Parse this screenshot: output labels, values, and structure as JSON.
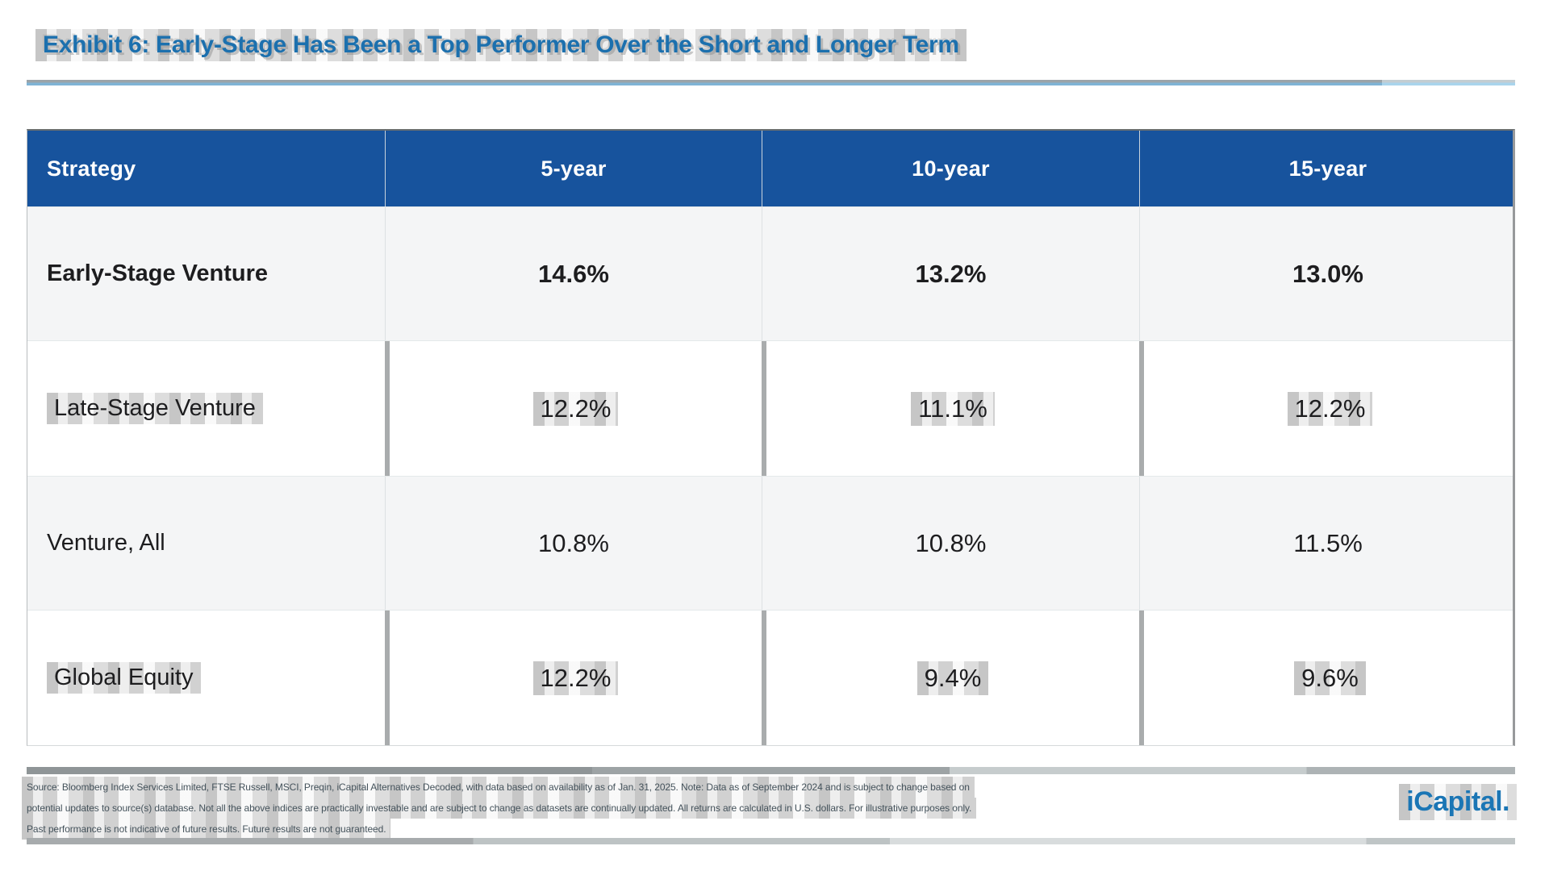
{
  "title": "Exhibit 6: Early-Stage Has Been a Top Performer Over the Short and Longer Term",
  "table": {
    "columns": [
      "Strategy",
      "5-year",
      "10-year",
      "15-year"
    ],
    "rows": [
      {
        "label": "Early-Stage Venture",
        "values": [
          "14.6%",
          "13.2%",
          "13.0%"
        ]
      },
      {
        "label": "Late-Stage Venture",
        "values": [
          "12.2%",
          "11.1%",
          "12.2%"
        ]
      },
      {
        "label": "Venture, All",
        "values": [
          "10.8%",
          "10.8%",
          "11.5%"
        ]
      },
      {
        "label": "Global Equity",
        "values": [
          "12.2%",
          "9.4%",
          "9.6%"
        ]
      }
    ]
  },
  "chart_data": {
    "type": "table",
    "title": "Exhibit 6: Early-Stage Has Been a Top Performer Over the Short and Longer Term",
    "columns": [
      "Strategy",
      "5-year",
      "10-year",
      "15-year"
    ],
    "rows": [
      {
        "strategy": "Early-Stage Venture",
        "five_year_pct": 14.6,
        "ten_year_pct": 13.2,
        "fifteen_year_pct": 13.0
      },
      {
        "strategy": "Late-Stage Venture",
        "five_year_pct": 12.2,
        "ten_year_pct": 11.1,
        "fifteen_year_pct": 12.2
      },
      {
        "strategy": "Venture, All",
        "five_year_pct": 10.8,
        "ten_year_pct": 10.8,
        "fifteen_year_pct": 11.5
      },
      {
        "strategy": "Global Equity",
        "five_year_pct": 12.2,
        "ten_year_pct": 9.4,
        "fifteen_year_pct": 9.6
      }
    ],
    "units": "percent",
    "highlighted_row": "Early-Stage Venture"
  },
  "footnote": {
    "lines": [
      "Source: Bloomberg Index Services Limited, FTSE Russell, MSCI, Preqin, iCapital Alternatives Decoded, with data based on availability as of Jan. 31, 2025. Note: Data as of September 2024 and is subject to change based on",
      "potential updates to source(s) database. Not all the above indices are practically investable and are subject to change as datasets are continually updated. All returns are calculated in U.S. dollars. For illustrative purposes only.",
      "Past performance is not indicative of future results. Future results are not guaranteed."
    ]
  },
  "logo": {
    "text": "iCapital."
  },
  "colors": {
    "header_bg": "#17539D",
    "title_blue": "#1C70AE",
    "emphasis_blue": "#11519C",
    "label_blue": "#2466A8",
    "value_black": "#1D1D1F",
    "shaded_row_bg": "#F4F5F6",
    "logo_blue": "#1B76B5"
  }
}
